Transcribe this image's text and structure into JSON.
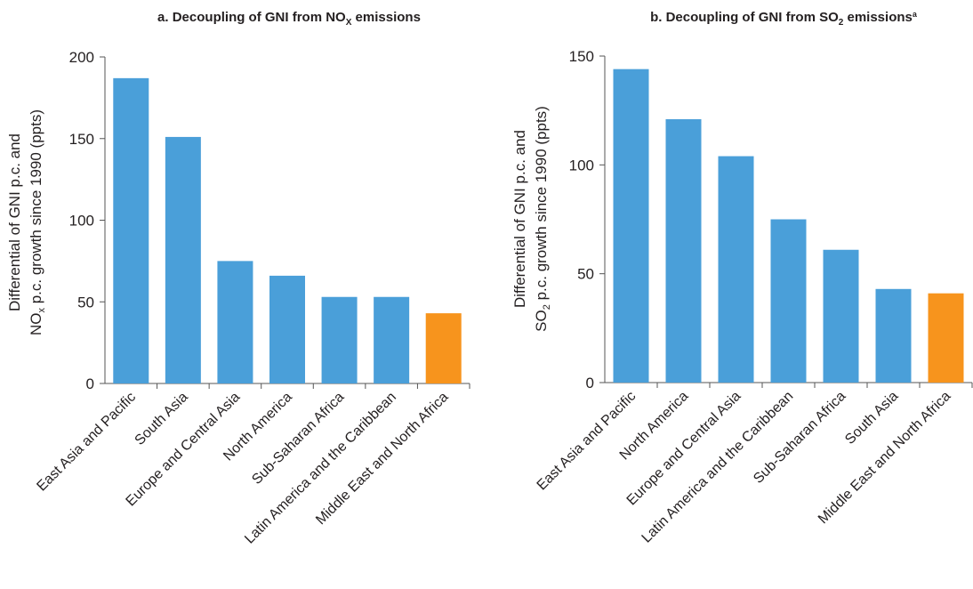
{
  "chart_data": [
    {
      "type": "bar",
      "title": "a. Decoupling of GNI from NO",
      "title_sub": "X",
      "title_suffix": " emissions",
      "ylabel_line1": "Differential of GNI p.c. and",
      "ylabel_line2_pre": "NO",
      "ylabel_line2_sub": "x",
      "ylabel_line2_post": " p.c. growth since 1990 (ppts)",
      "ylim": [
        0,
        200
      ],
      "yticks": [
        0,
        50,
        100,
        150,
        200
      ],
      "categories": [
        "East Asia and Pacific",
        "South Asia",
        "Europe and Central Asia",
        "North America",
        "Sub-Saharan Africa",
        "Latin America and the Caribbean",
        "Middle East and North Africa"
      ],
      "values": [
        187,
        151,
        75,
        66,
        53,
        53,
        43
      ],
      "colors": [
        "#4a9fd9",
        "#4a9fd9",
        "#4a9fd9",
        "#4a9fd9",
        "#4a9fd9",
        "#4a9fd9",
        "#f7941d"
      ],
      "grid": false
    },
    {
      "type": "bar",
      "title": "b. Decoupling of GNI from SO",
      "title_sub": "2",
      "title_suffix": " emissions",
      "title_sup": "a",
      "ylabel_line1": "Differential of GNI p.c. and",
      "ylabel_line2_pre": "SO",
      "ylabel_line2_sub": "2",
      "ylabel_line2_post": " p.c. growth since 1990 (ppts)",
      "ylim": [
        0,
        150
      ],
      "yticks": [
        0,
        50,
        100,
        150
      ],
      "categories": [
        "East Asia and Pacific",
        "North America",
        "Europe and Central Asia",
        "Latin America and the Caribbean",
        "Sub-Saharan Africa",
        "South Asia",
        "Middle East and North Africa"
      ],
      "values": [
        144,
        121,
        104,
        75,
        61,
        43,
        41
      ],
      "colors": [
        "#4a9fd9",
        "#4a9fd9",
        "#4a9fd9",
        "#4a9fd9",
        "#4a9fd9",
        "#4a9fd9",
        "#f7941d"
      ],
      "grid": false
    }
  ]
}
